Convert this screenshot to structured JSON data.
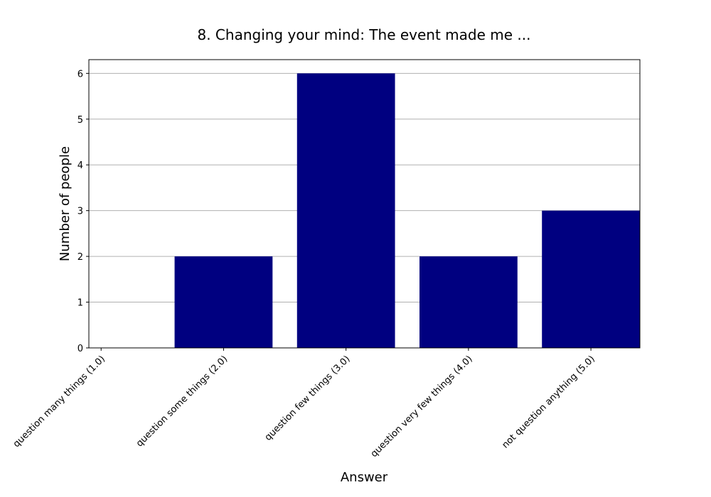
{
  "chart_data": {
    "type": "bar",
    "title": "8. Changing your mind: The event made me ...",
    "xlabel": "Answer",
    "ylabel": "Number of people",
    "categories": [
      "question many things (1.0)",
      "question some things (2.0)",
      "question few things (3.0)",
      "question very few things (4.0)",
      "not question anything (5.0)"
    ],
    "values": [
      0,
      2,
      6,
      2,
      3
    ],
    "ylim": [
      0,
      6.3
    ],
    "yticks": [
      0,
      1,
      2,
      3,
      4,
      5,
      6
    ],
    "grid": "y",
    "bar_color": "#000080"
  }
}
